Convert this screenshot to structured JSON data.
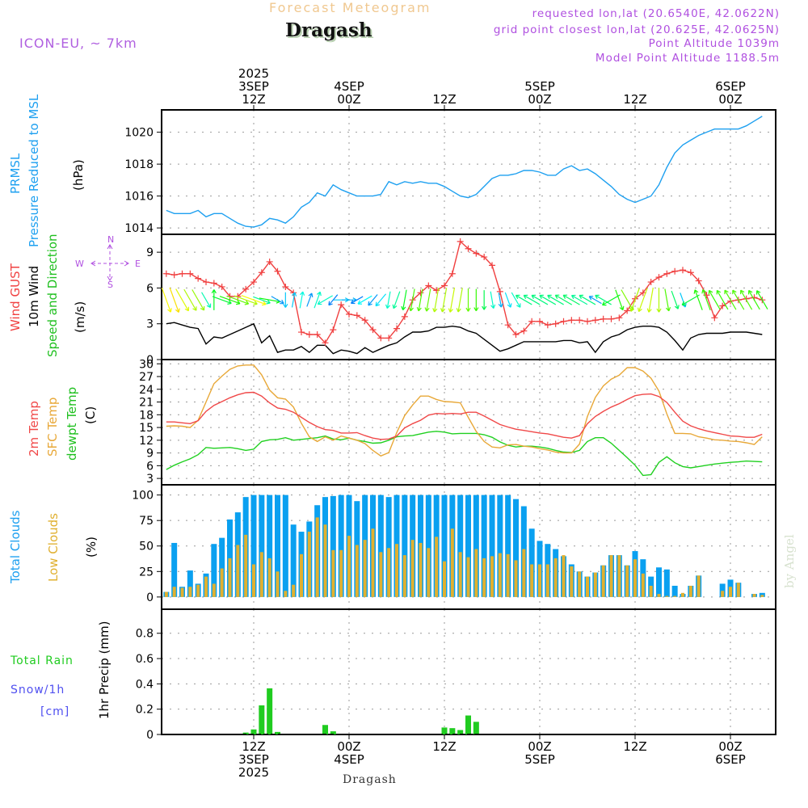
{
  "header": {
    "product": "Forecast Meteogram",
    "location": "Dragash",
    "model": "ICON-EU, ~ 7km",
    "requested": "requested lon,lat (20.6540E, 42.0622N)",
    "gridpoint": "grid point closest lon,lat (20.625E, 42.0625N)",
    "point_alt": "Point Altitude 1039m",
    "model_alt": "Model Point Altitude 1188.5m"
  },
  "footer": {
    "location": "Dragash",
    "watermark": "by Angel"
  },
  "time_axis": {
    "start_hour": 1,
    "end_hour": 76,
    "top_ticks": [
      {
        "hour": 12,
        "lines": [
          "2025",
          "3SEP",
          "12Z"
        ]
      },
      {
        "hour": 24,
        "lines": [
          "4SEP",
          "00Z"
        ]
      },
      {
        "hour": 36,
        "lines": [
          "12Z"
        ]
      },
      {
        "hour": 48,
        "lines": [
          "5SEP",
          "00Z"
        ]
      },
      {
        "hour": 60,
        "lines": [
          "12Z"
        ]
      },
      {
        "hour": 72,
        "lines": [
          "6SEP",
          "00Z"
        ]
      }
    ],
    "bottom_ticks": [
      {
        "hour": 12,
        "lines": [
          "12Z",
          "3SEP",
          "2025"
        ]
      },
      {
        "hour": 24,
        "lines": [
          "00Z",
          "4SEP"
        ]
      },
      {
        "hour": 36,
        "lines": [
          "12Z"
        ]
      },
      {
        "hour": 48,
        "lines": [
          "00Z",
          "5SEP"
        ]
      },
      {
        "hour": 60,
        "lines": [
          "12Z"
        ]
      },
      {
        "hour": 72,
        "lines": [
          "00Z",
          "6SEP"
        ]
      }
    ]
  },
  "colors": {
    "pressure": "#1ea0f0",
    "gust": "#f04040",
    "wind": "#000000",
    "t2m": "#f04848",
    "tsfc": "#e8a838",
    "dewpt": "#20d020",
    "total_clouds": "#0aa0f0",
    "low_clouds": "#e0b030",
    "rain": "#20cc20",
    "snow": "#5050f0",
    "compass": "#b050e0"
  },
  "panel_labels": {
    "pressure": [
      "PRMSL",
      "Pressure Reduced to MSL",
      "(hPa)"
    ],
    "wind": [
      "Wind GUST",
      "10m Wind",
      "Speed and Direction",
      "(m/s)"
    ],
    "compass": {
      "n": "N",
      "s": "S",
      "w": "W",
      "e": "E"
    },
    "temp": [
      "2m Temp",
      "SFC Temp",
      "dewpt Temp",
      "(C)"
    ],
    "clouds": [
      "Total Clouds",
      "Low Clouds",
      "(%)"
    ],
    "precip": [
      "Total  Rain",
      "Snow/1h",
      "[cm]",
      "1hr Precip (mm)"
    ]
  },
  "chart_data": [
    {
      "type": "line",
      "title": "PRMSL Pressure Reduced to MSL",
      "ylabel": "(hPa)",
      "ylim": [
        1013.6,
        1021.4
      ],
      "yticks": [
        1014,
        1016,
        1018,
        1020
      ],
      "grid": true,
      "series": [
        {
          "name": "PRMSL",
          "values": [
            1015.1,
            1014.9,
            1014.9,
            1014.9,
            1015.1,
            1014.7,
            1014.9,
            1014.9,
            1014.6,
            1014.3,
            1014.1,
            1014.05,
            1014.2,
            1014.6,
            1014.5,
            1014.3,
            1014.7,
            1015.3,
            1015.6,
            1016.2,
            1016.0,
            1016.7,
            1016.4,
            1016.2,
            1016.0,
            1016.0,
            1016.0,
            1016.1,
            1016.9,
            1016.7,
            1016.9,
            1016.8,
            1016.9,
            1016.8,
            1016.8,
            1016.6,
            1016.3,
            1016.0,
            1015.9,
            1016.1,
            1016.6,
            1017.1,
            1017.3,
            1017.3,
            1017.4,
            1017.6,
            1017.6,
            1017.5,
            1017.3,
            1017.3,
            1017.7,
            1017.9,
            1017.6,
            1017.7,
            1017.4,
            1017.0,
            1016.6,
            1016.1,
            1015.8,
            1015.6,
            1015.8,
            1016.0,
            1016.7,
            1017.8,
            1018.7,
            1019.2,
            1019.5,
            1019.8,
            1020.0,
            1020.2,
            1020.2,
            1020.2,
            1020.2,
            1020.4,
            1020.7,
            1021.0
          ]
        }
      ]
    },
    {
      "type": "line",
      "title": "Wind GUST / 10m Wind Speed and Direction",
      "ylabel": "(m/s)",
      "ylim": [
        0,
        10.5
      ],
      "yticks": [
        0,
        3,
        6,
        9
      ],
      "grid": true,
      "series": [
        {
          "name": "Wind GUST",
          "values": [
            7.2,
            7.1,
            7.2,
            7.2,
            6.8,
            6.5,
            6.4,
            6.1,
            5.3,
            5.3,
            5.9,
            6.5,
            7.3,
            8.2,
            7.4,
            6.1,
            5.6,
            2.3,
            2.1,
            2.1,
            1.4,
            2.5,
            4.6,
            3.8,
            3.7,
            3.3,
            2.5,
            1.8,
            1.8,
            2.6,
            3.6,
            5.0,
            5.6,
            6.2,
            5.8,
            6.2,
            7.2,
            9.9,
            9.3,
            8.9,
            8.6,
            7.9,
            5.7,
            2.9,
            2.1,
            2.4,
            3.2,
            3.2,
            2.9,
            3.0,
            3.2,
            3.3,
            3.3,
            3.2,
            3.3,
            3.4,
            3.4,
            3.5,
            4.1,
            5.1,
            5.6,
            6.5,
            6.9,
            7.2,
            7.4,
            7.5,
            7.3,
            6.6,
            5.4,
            3.5,
            4.5,
            4.9,
            5.0,
            5.1,
            5.2,
            5.0
          ]
        },
        {
          "name": "10m Wind",
          "values": [
            3.0,
            3.1,
            2.9,
            2.7,
            2.6,
            1.3,
            1.9,
            1.8,
            2.1,
            2.4,
            2.7,
            3.0,
            1.4,
            2.0,
            0.6,
            0.8,
            0.8,
            1.1,
            0.6,
            1.2,
            1.2,
            0.5,
            0.8,
            0.7,
            0.5,
            1.0,
            0.6,
            0.9,
            1.2,
            1.4,
            1.9,
            2.3,
            2.3,
            2.4,
            2.7,
            2.7,
            2.8,
            2.7,
            2.4,
            2.2,
            1.7,
            1.2,
            0.7,
            0.9,
            1.2,
            1.5,
            1.5,
            1.5,
            1.5,
            1.5,
            1.6,
            1.6,
            1.4,
            1.5,
            0.6,
            1.5,
            1.9,
            2.1,
            2.5,
            2.7,
            2.8,
            2.8,
            2.7,
            2.3,
            1.6,
            0.8,
            1.8,
            2.1,
            2.2,
            2.2,
            2.2,
            2.3,
            2.3,
            2.3,
            2.2,
            2.1
          ]
        },
        {
          "name": "Wind Direction (deg from)",
          "values": [
            340,
            340,
            330,
            330,
            330,
            330,
            180,
            290,
            290,
            290,
            290,
            290,
            290,
            280,
            300,
            0,
            190,
            190,
            200,
            200,
            60,
            40,
            270,
            270,
            60,
            60,
            40,
            40,
            10,
            20,
            10,
            10,
            10,
            10,
            10,
            10,
            10,
            10,
            0,
            0,
            0,
            350,
            350,
            340,
            330,
            120,
            120,
            120,
            120,
            120,
            120,
            120,
            120,
            120,
            120,
            120,
            60,
            340,
            330,
            20,
            20,
            10,
            0,
            350,
            340,
            340,
            60,
            160,
            160,
            150,
            150,
            150,
            150,
            150,
            150,
            150
          ]
        }
      ]
    },
    {
      "type": "line",
      "title": "2m Temp / SFC Temp / dewpt Temp",
      "ylabel": "(C)",
      "ylim": [
        1.5,
        31
      ],
      "yticks": [
        3,
        6,
        9,
        12,
        15,
        18,
        21,
        24,
        27,
        30
      ],
      "grid": true,
      "series": [
        {
          "name": "2m Temp",
          "values": [
            16.3,
            16.3,
            16.1,
            15.9,
            16.6,
            18.8,
            20.2,
            21.1,
            22.0,
            22.7,
            23.2,
            23.3,
            22.4,
            20.8,
            19.6,
            19.3,
            18.6,
            17.4,
            16.2,
            15.2,
            14.5,
            14.3,
            13.7,
            13.7,
            13.8,
            13.1,
            12.5,
            12.2,
            12.3,
            13.0,
            14.9,
            15.9,
            16.7,
            17.9,
            18.3,
            18.2,
            18.3,
            18.2,
            18.6,
            18.6,
            17.7,
            16.7,
            15.7,
            15.1,
            14.6,
            14.3,
            14.0,
            13.7,
            13.5,
            13.1,
            12.7,
            12.5,
            13.1,
            15.9,
            17.6,
            18.8,
            19.8,
            20.6,
            21.6,
            22.5,
            22.8,
            22.9,
            22.3,
            20.9,
            18.6,
            16.5,
            15.4,
            14.7,
            14.2,
            13.8,
            13.4,
            13.0,
            12.9,
            12.7,
            12.7,
            13.4
          ]
        },
        {
          "name": "SFC Temp",
          "values": [
            15.3,
            15.4,
            15.3,
            15.0,
            16.7,
            21.0,
            25.3,
            27.1,
            28.7,
            29.5,
            29.7,
            29.7,
            27.4,
            23.8,
            22.0,
            21.7,
            19.8,
            16.0,
            12.8,
            11.7,
            12.8,
            12.0,
            13.0,
            12.5,
            12.0,
            11.2,
            9.6,
            8.3,
            9.1,
            13.8,
            17.8,
            20.3,
            22.4,
            22.4,
            21.6,
            21.1,
            21.0,
            20.8,
            17.4,
            14.1,
            11.7,
            10.4,
            10.2,
            10.9,
            11.0,
            10.6,
            10.4,
            10.0,
            9.7,
            9.2,
            9.0,
            9.0,
            11.1,
            17.6,
            22.1,
            24.8,
            26.4,
            27.3,
            29.1,
            29.1,
            28.3,
            26.6,
            23.6,
            18.2,
            13.6,
            13.6,
            13.5,
            12.8,
            12.5,
            12.1,
            12.0,
            11.8,
            11.7,
            11.4,
            11.0,
            12.8
          ]
        },
        {
          "name": "dewpt Temp",
          "values": [
            5.1,
            6.1,
            6.9,
            7.6,
            8.6,
            10.3,
            10.1,
            10.2,
            10.3,
            10.0,
            9.6,
            9.9,
            11.7,
            12.1,
            12.2,
            12.6,
            12.0,
            12.2,
            12.4,
            12.6,
            13.0,
            12.3,
            12.1,
            12.5,
            12.0,
            11.7,
            11.3,
            11.4,
            12.0,
            12.8,
            13.0,
            13.1,
            13.5,
            13.9,
            14.1,
            13.9,
            13.5,
            13.6,
            13.6,
            13.6,
            13.3,
            12.7,
            11.6,
            10.8,
            10.4,
            10.6,
            10.6,
            10.4,
            10.1,
            9.6,
            9.2,
            9.1,
            9.6,
            11.7,
            12.6,
            12.6,
            11.3,
            9.6,
            7.9,
            6.1,
            3.7,
            3.9,
            6.8,
            8.1,
            6.7,
            5.8,
            5.5,
            5.8,
            6.1,
            6.4,
            6.6,
            6.8,
            6.9,
            7.1,
            7.0,
            6.9
          ]
        }
      ]
    },
    {
      "type": "bar",
      "title": "Total Clouds / Low Clouds",
      "ylabel": "(%)",
      "ylim": [
        -12,
        110
      ],
      "yticks": [
        0,
        25,
        50,
        75,
        100
      ],
      "grid": true,
      "series": [
        {
          "name": "Total Clouds",
          "values": [
            5,
            53,
            10,
            26,
            13,
            23,
            52,
            58,
            76,
            83,
            98,
            100,
            100,
            100,
            100,
            100,
            71,
            64,
            74,
            90,
            98,
            99,
            100,
            100,
            94,
            100,
            100,
            100,
            98,
            100,
            100,
            100,
            100,
            100,
            100,
            100,
            100,
            100,
            100,
            100,
            100,
            100,
            100,
            100,
            96,
            89,
            67,
            55,
            52,
            47,
            40,
            32,
            25,
            20,
            24,
            31,
            41,
            41,
            31,
            45,
            37,
            20,
            29,
            27,
            11,
            3,
            11,
            21,
            0,
            0,
            13,
            17,
            14,
            0,
            3,
            4
          ]
        },
        {
          "name": "Low Clouds",
          "values": [
            5,
            10,
            9,
            10,
            12,
            20,
            13,
            28,
            38,
            51,
            61,
            32,
            44,
            38,
            25,
            6,
            12,
            42,
            64,
            78,
            71,
            46,
            46,
            60,
            51,
            56,
            67,
            44,
            48,
            52,
            41,
            56,
            53,
            48,
            59,
            35,
            67,
            44,
            39,
            47,
            38,
            40,
            43,
            42,
            36,
            47,
            32,
            32,
            32,
            38,
            41,
            30,
            25,
            20,
            24,
            31,
            41,
            41,
            31,
            37,
            23,
            11,
            3,
            1,
            1,
            4,
            11,
            21,
            0,
            0,
            6,
            10,
            14,
            0,
            3,
            2
          ]
        }
      ]
    },
    {
      "type": "bar",
      "title": "1hr Precip",
      "ylabel": "1hr Precip (mm)",
      "ylim": [
        0,
        0.99
      ],
      "yticks": [
        0,
        0.2,
        0.4,
        0.6,
        0.8
      ],
      "grid": true,
      "series": [
        {
          "name": "Total Rain",
          "values": [
            0,
            0,
            0,
            0,
            0,
            0,
            0,
            0,
            0,
            0,
            0.015,
            0.04,
            0.23,
            0.365,
            0.02,
            0,
            0,
            0,
            0,
            0,
            0.075,
            0.025,
            0,
            0,
            0,
            0,
            0,
            0,
            0,
            0,
            0,
            0,
            0,
            0,
            0,
            0.055,
            0.05,
            0.035,
            0.15,
            0.1,
            0,
            0,
            0,
            0,
            0,
            0,
            0,
            0,
            0,
            0,
            0,
            0,
            0,
            0,
            0,
            0,
            0,
            0,
            0,
            0,
            0,
            0,
            0,
            0,
            0,
            0,
            0,
            0,
            0,
            0,
            0,
            0,
            0,
            0,
            0,
            0
          ]
        },
        {
          "name": "Snow/1h",
          "values": []
        }
      ]
    }
  ]
}
